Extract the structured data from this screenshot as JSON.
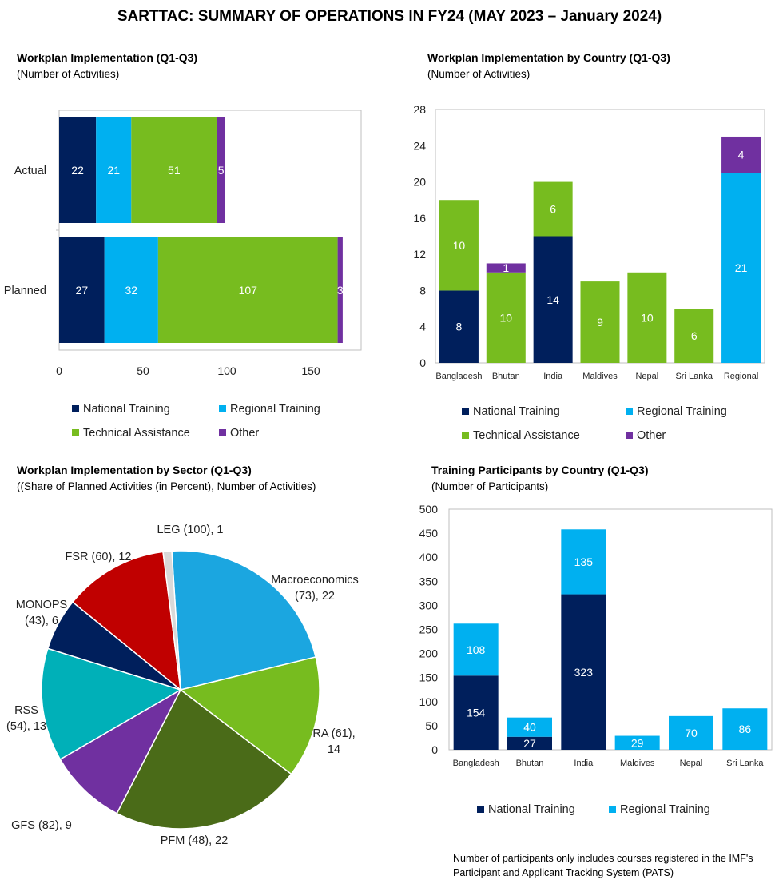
{
  "page": {
    "title": "SARTTAC: SUMMARY OF OPERATIONS IN FY24 (MAY 2023 – January 2024)"
  },
  "colors": {
    "national": "#001f5c",
    "regional": "#00b0f0",
    "technical": "#77bc1f",
    "other": "#7030a0"
  },
  "chart_data": [
    {
      "id": "workplan",
      "type": "bar",
      "orientation": "horizontal",
      "stacked": true,
      "title": "Workplan Implementation (Q1-Q3)",
      "subtitle": "(Number of Activities)",
      "categories": [
        "Actual",
        "Planned"
      ],
      "series": [
        {
          "name": "National Training",
          "color": "#001f5c",
          "values": [
            22,
            27
          ]
        },
        {
          "name": "Regional Training",
          "color": "#00b0f0",
          "values": [
            21,
            32
          ]
        },
        {
          "name": "Technical Assistance",
          "color": "#77bc1f",
          "values": [
            51,
            107
          ]
        },
        {
          "name": "Other",
          "color": "#7030a0",
          "values": [
            5,
            3
          ]
        }
      ],
      "xlim": [
        0,
        180
      ],
      "xticks": [
        0,
        50,
        100,
        150
      ],
      "legend_position": "bottom"
    },
    {
      "id": "country",
      "type": "bar",
      "stacked": true,
      "title": "Workplan Implementation by Country (Q1-Q3)",
      "subtitle": "(Number of Activities)",
      "categories": [
        "Bangladesh",
        "Bhutan",
        "India",
        "Maldives",
        "Nepal",
        "Sri Lanka",
        "Regional"
      ],
      "series": [
        {
          "name": "National Training",
          "color": "#001f5c",
          "values": [
            8,
            0,
            14,
            0,
            0,
            0,
            0
          ]
        },
        {
          "name": "Regional Training",
          "color": "#00b0f0",
          "values": [
            0,
            0,
            0,
            0,
            0,
            0,
            21
          ]
        },
        {
          "name": "Technical Assistance",
          "color": "#77bc1f",
          "values": [
            10,
            10,
            6,
            9,
            10,
            6,
            0
          ]
        },
        {
          "name": "Other",
          "color": "#7030a0",
          "values": [
            0,
            1,
            0,
            0,
            0,
            0,
            4
          ]
        }
      ],
      "ylim": [
        0,
        28
      ],
      "yticks": [
        0,
        4,
        8,
        12,
        16,
        20,
        24,
        28
      ],
      "legend_position": "bottom"
    },
    {
      "id": "sector",
      "type": "pie",
      "title": "Workplan Implementation by Sector (Q1-Q3)",
      "subtitle": "((Share of Planned Activities (in Percent), Number of Activities)",
      "slices": [
        {
          "name": "Macroeconomics",
          "share": 73,
          "value": 22,
          "color": "#1ba6e0",
          "label_lines": [
            "Macroeconomics",
            "(73), 22"
          ]
        },
        {
          "name": "RA",
          "share": 61,
          "value": 14,
          "color": "#77bc1f",
          "label_lines": [
            "RA (61),",
            "14"
          ]
        },
        {
          "name": "PFM",
          "share": 48,
          "value": 22,
          "color": "#4a6b18",
          "label_lines": [
            "PFM (48), 22"
          ]
        },
        {
          "name": "GFS",
          "share": 82,
          "value": 9,
          "color": "#7030a0",
          "label_lines": [
            "GFS (82), 9"
          ]
        },
        {
          "name": "RSS",
          "share": 54,
          "value": 13,
          "color": "#00b0b8",
          "label_lines": [
            "RSS",
            "(54), 13"
          ]
        },
        {
          "name": "MONOPS",
          "share": 43,
          "value": 6,
          "color": "#001f5c",
          "label_lines": [
            "MONOPS",
            "(43), 6"
          ]
        },
        {
          "name": "FSR",
          "share": 60,
          "value": 12,
          "color": "#c00000",
          "label_lines": [
            "FSR (60), 12"
          ]
        },
        {
          "name": "LEG",
          "share": 100,
          "value": 1,
          "color": "#d9d9d9",
          "label_lines": [
            "LEG (100), 1"
          ]
        }
      ]
    },
    {
      "id": "participants",
      "type": "bar",
      "stacked": true,
      "title": "Training Participants by Country (Q1-Q3)",
      "subtitle": "(Number of Participants)",
      "categories": [
        "Bangladesh",
        "Bhutan",
        "India",
        "Maldives",
        "Nepal",
        "Sri Lanka"
      ],
      "series": [
        {
          "name": "National Training",
          "color": "#001f5c",
          "values": [
            154,
            27,
            323,
            0,
            0,
            0
          ]
        },
        {
          "name": "Regional Training",
          "color": "#00b0f0",
          "values": [
            108,
            40,
            135,
            29,
            70,
            86
          ]
        }
      ],
      "ylim": [
        0,
        500
      ],
      "yticks": [
        0,
        50,
        100,
        150,
        200,
        250,
        300,
        350,
        400,
        450,
        500
      ],
      "legend_position": "bottom",
      "note": "Number of participants only includes courses registered in the IMF's Participant and Applicant Tracking System (PATS)"
    }
  ]
}
